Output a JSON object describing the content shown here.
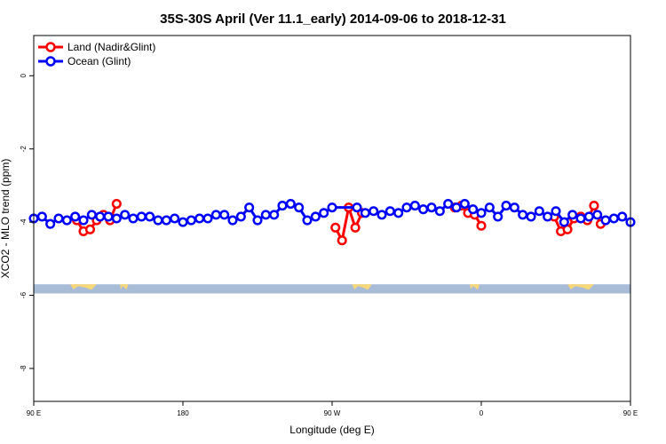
{
  "chart_data": {
    "type": "line",
    "title": "35S-30S April (Ver 11.1_early)   2014-09-06 to 2018-12-31",
    "xlabel": "Longitude (deg E)",
    "ylabel": "XCO2 - MLO trend (ppm)",
    "xlim": [
      90,
      450
    ],
    "ylim": [
      -8.9,
      1.1
    ],
    "xticks": [
      {
        "value": 90,
        "label": "90 E"
      },
      {
        "value": 180,
        "label": "180"
      },
      {
        "value": 270,
        "label": "90 W"
      },
      {
        "value": 360,
        "label": "0"
      },
      {
        "value": 450,
        "label": "90 E"
      },
      {
        "value": 540,
        "label": "180"
      }
    ],
    "yticks": [
      0,
      -2,
      -4,
      -6,
      -8
    ],
    "legend": {
      "position": "top-left",
      "entries": [
        {
          "label": "Land (Nadir&Glint)",
          "color": "#ff0000"
        },
        {
          "label": "Ocean (Glint)",
          "color": "#0000ff"
        }
      ]
    },
    "series": [
      {
        "name": "Land (Nadir&Glint)",
        "color": "#ff0000",
        "segments": [
          {
            "x": [
              116,
              120,
              124,
              128,
              132,
              136,
              140
            ],
            "y": [
              -3.95,
              -4.25,
              -4.2,
              -3.95,
              -3.8,
              -3.95,
              -3.5
            ]
          },
          {
            "x": [
              272,
              276,
              280,
              284,
              288
            ],
            "y": [
              -4.15,
              -4.5,
              -3.6,
              -4.15,
              -3.75
            ]
          },
          {
            "x": [
              344,
              348,
              352,
              356,
              360
            ],
            "y": [
              -3.6,
              -3.55,
              -3.75,
              -3.8,
              -4.1
            ]
          },
          {
            "x": [
              404,
              408,
              412,
              416,
              420,
              424,
              428,
              432
            ],
            "y": [
              -3.85,
              -4.25,
              -4.2,
              -3.9,
              -3.85,
              -3.95,
              -3.55,
              -4.05
            ]
          }
        ]
      },
      {
        "name": "Ocean (Glint)",
        "color": "#0000ff",
        "x": [
          90,
          95,
          100,
          105,
          110,
          115,
          120,
          125,
          130,
          135,
          140,
          145,
          150,
          155,
          160,
          165,
          170,
          175,
          180,
          185,
          190,
          195,
          200,
          205,
          210,
          215,
          220,
          225,
          230,
          235,
          240,
          245,
          250,
          255,
          260,
          265,
          270,
          285,
          290,
          295,
          300,
          305,
          310,
          315,
          320,
          325,
          330,
          335,
          340,
          345,
          350,
          355,
          360,
          365,
          370,
          375,
          380,
          385,
          390,
          395,
          400,
          405,
          410,
          415,
          420,
          425,
          430,
          435,
          440,
          445,
          450
        ],
        "y": [
          -3.9,
          -3.85,
          -4.05,
          -3.9,
          -3.95,
          -3.85,
          -3.95,
          -3.8,
          -3.85,
          -3.85,
          -3.9,
          -3.8,
          -3.9,
          -3.85,
          -3.85,
          -3.95,
          -3.95,
          -3.9,
          -4.0,
          -3.95,
          -3.9,
          -3.9,
          -3.8,
          -3.8,
          -3.95,
          -3.85,
          -3.6,
          -3.95,
          -3.8,
          -3.8,
          -3.55,
          -3.5,
          -3.6,
          -3.95,
          -3.85,
          -3.75,
          -3.6,
          -3.6,
          -3.75,
          -3.7,
          -3.8,
          -3.7,
          -3.75,
          -3.6,
          -3.55,
          -3.65,
          -3.6,
          -3.7,
          -3.5,
          -3.6,
          -3.5,
          -3.65,
          -3.75,
          -3.6,
          -3.85,
          -3.55,
          -3.6,
          -3.8,
          -3.85,
          -3.7,
          -3.85,
          -3.7,
          -4.0,
          -3.8,
          -3.9,
          -3.85,
          -3.8,
          -3.95,
          -3.9,
          -3.85,
          -4.0
        ]
      }
    ],
    "land_mask_band": {
      "y_range": [
        -5.95,
        -5.7
      ],
      "ocean_color": "#a8bcd8",
      "land_color": "#f6d77a",
      "land_spans": [
        [
          112,
          128
        ],
        [
          142,
          147
        ],
        [
          282,
          294
        ],
        [
          353,
          359
        ],
        [
          412,
          428
        ]
      ]
    }
  }
}
